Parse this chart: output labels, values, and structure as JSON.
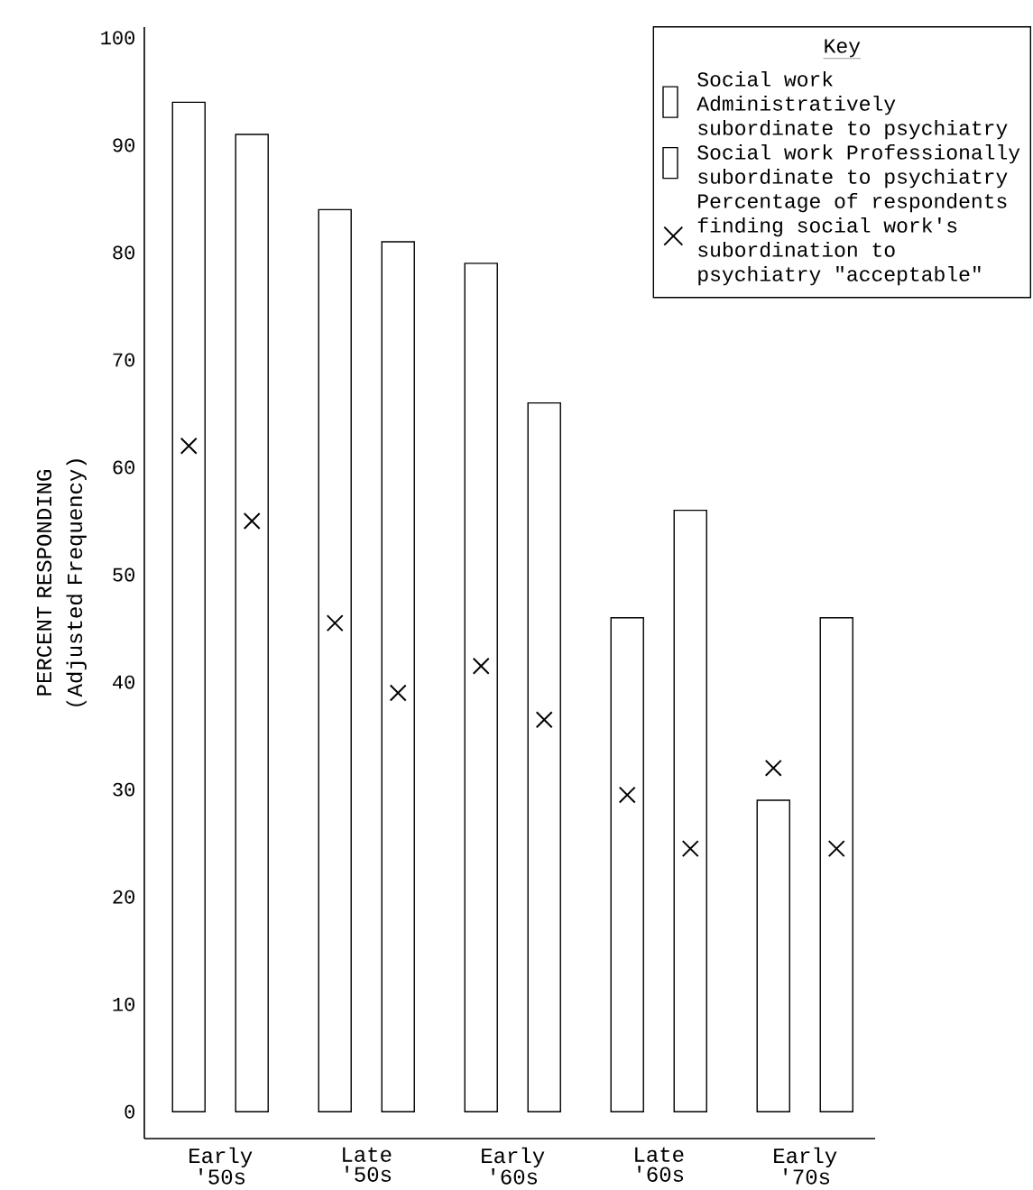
{
  "chart_data": {
    "type": "bar",
    "ylabel": "PERCENT RESPONDING (Adjusted Frequency)",
    "legend_title": "Key",
    "legend": "top right",
    "categories": [
      "Early '50s",
      "Late '50s",
      "Early '60s",
      "Late '60s",
      "Early '70s"
    ],
    "ylim": [
      -2.5,
      101
    ],
    "yticks": [
      0,
      10,
      20,
      30,
      40,
      50,
      60,
      70,
      80,
      90,
      100
    ],
    "series": [
      {
        "name": "Social work Administratively subordinate to psychiatry",
        "color": "#ffffff",
        "values": [
          94,
          84,
          79,
          46,
          29
        ]
      },
      {
        "name": "Social work Professionally subordinate to psychiatry",
        "color": "#ffffff",
        "values": [
          91,
          81,
          66,
          56,
          46
        ]
      },
      {
        "type": "scatter",
        "name": "Percentage of respondents finding social work's subordination to psychiatry \"acceptable\"",
        "color": "#000000",
        "marker": "cross",
        "x": [
          "Early '50s",
          "Late '50s",
          "Early '60s",
          "Late '60s",
          "Early '70s"
        ],
        "values": [
          62,
          45.5,
          41.5,
          29.5,
          32
        ]
      },
      {
        "type": "scatter",
        "color": "#000000",
        "marker": "cross",
        "x": [
          "Early '50s",
          "Late '50s",
          "Early '60s",
          "Late '60s",
          "Early '70s"
        ],
        "values": [
          55,
          39,
          36.5,
          24.5,
          24.5
        ]
      }
    ]
  }
}
